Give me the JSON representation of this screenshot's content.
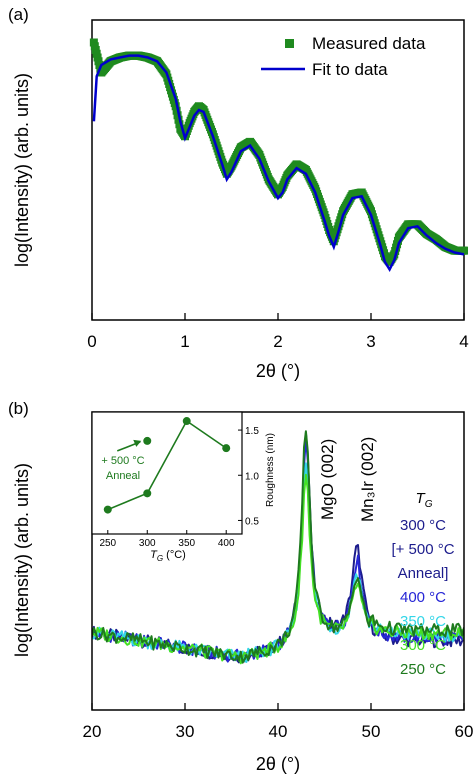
{
  "chart_data": [
    {
      "panel_label": "(a)",
      "type": "line",
      "xlabel": "2θ (°)",
      "ylabel": "log(Intensity) (arb. units)",
      "xlim": [
        0,
        4
      ],
      "xticks": [
        "0",
        "1",
        "2",
        "3",
        "4"
      ],
      "y_ticks_labeled": false,
      "legend": {
        "placement": "top-right",
        "entries": [
          "Measured data",
          "Fit to data"
        ]
      },
      "series": [
        {
          "name": "Measured data",
          "marker": "square",
          "color": "#1f8a1f",
          "x": [
            0.02,
            0.1,
            0.2,
            0.3,
            0.4,
            0.5,
            0.6,
            0.7,
            0.8,
            0.9,
            0.95,
            1.0,
            1.05,
            1.1,
            1.15,
            1.2,
            1.3,
            1.4,
            1.45,
            1.5,
            1.6,
            1.7,
            1.8,
            1.9,
            2.0,
            2.05,
            2.1,
            2.2,
            2.3,
            2.4,
            2.5,
            2.55,
            2.6,
            2.65,
            2.7,
            2.8,
            2.9,
            3.0,
            3.1,
            3.15,
            3.2,
            3.25,
            3.3,
            3.4,
            3.5,
            3.6,
            3.7,
            3.8,
            3.9,
            4.0
          ],
          "y": [
            9.4,
            8.6,
            8.9,
            9.0,
            9.05,
            9.05,
            9.0,
            8.9,
            8.55,
            7.7,
            7.1,
            6.9,
            7.25,
            7.55,
            7.7,
            7.6,
            6.95,
            6.2,
            5.9,
            6.1,
            6.6,
            6.75,
            6.4,
            5.75,
            5.35,
            5.55,
            5.85,
            6.15,
            6.0,
            5.5,
            4.8,
            4.4,
            4.1,
            4.5,
            4.9,
            5.35,
            5.4,
            4.9,
            4.1,
            3.7,
            3.55,
            3.75,
            4.2,
            4.55,
            4.55,
            4.3,
            4.15,
            3.95,
            3.85,
            3.85
          ]
        },
        {
          "name": "Fit to data",
          "color": "#0000cc",
          "x": [
            0.02,
            0.05,
            0.1,
            0.2,
            0.3,
            0.4,
            0.5,
            0.6,
            0.7,
            0.8,
            0.9,
            0.95,
            1.0,
            1.05,
            1.1,
            1.15,
            1.2,
            1.3,
            1.4,
            1.45,
            1.5,
            1.6,
            1.7,
            1.8,
            1.9,
            2.0,
            2.05,
            2.1,
            2.2,
            2.3,
            2.4,
            2.5,
            2.55,
            2.6,
            2.65,
            2.7,
            2.8,
            2.9,
            3.0,
            3.1,
            3.15,
            3.2,
            3.25,
            3.3,
            3.4,
            3.5,
            3.6,
            3.7,
            3.8,
            3.9,
            4.0
          ],
          "y": [
            7.3,
            8.5,
            8.8,
            8.95,
            9.0,
            9.05,
            9.05,
            9.0,
            8.9,
            8.6,
            7.9,
            7.3,
            6.85,
            7.15,
            7.45,
            7.6,
            7.55,
            6.9,
            6.15,
            5.75,
            5.95,
            6.5,
            6.65,
            6.3,
            5.7,
            5.25,
            5.4,
            5.75,
            6.05,
            5.9,
            5.4,
            4.65,
            4.25,
            3.95,
            4.35,
            4.8,
            5.25,
            5.3,
            4.8,
            4.0,
            3.55,
            3.35,
            3.6,
            4.05,
            4.45,
            4.5,
            4.25,
            4.05,
            3.9,
            3.8,
            3.75
          ]
        }
      ]
    },
    {
      "panel_label": "(b)",
      "type": "line",
      "xlabel": "2θ (°)",
      "ylabel": "log(Intensity) (arb. units)",
      "xlim": [
        20,
        60
      ],
      "xticks": [
        "20",
        "30",
        "40",
        "50",
        "60"
      ],
      "y_ticks_labeled": false,
      "annotations": [
        {
          "text": "MgO (002)",
          "x": 43
        },
        {
          "text": "Mn₃Ir (002)",
          "x": 48.5
        }
      ],
      "legend": {
        "placement": "right",
        "title": "T",
        "title_sub": "G",
        "entries": [
          {
            "label": "300 °C",
            "color": "#1c1c8c"
          },
          {
            "label": "[+ 500 °C",
            "color": "#1c1c8c"
          },
          {
            "label": "Anneal]",
            "color": "#1c1c8c"
          },
          {
            "label": "400 °C",
            "color": "#2626d6"
          },
          {
            "label": "350 °C",
            "color": "#33d6e8"
          },
          {
            "label": "300 °C",
            "color": "#44e024"
          },
          {
            "label": "250 °C",
            "color": "#1e7a1e"
          }
        ]
      },
      "series": [
        {
          "name": "300 °C [+ 500 °C Anneal]",
          "color": "#1c1c8c",
          "peak_mgo": 9.6,
          "peak_mn3ir": 5.8,
          "tail": 2.25
        },
        {
          "name": "400 °C",
          "color": "#2626d6",
          "peak_mgo": 9.2,
          "peak_mn3ir": 5.4,
          "tail": 2.35
        },
        {
          "name": "350 °C",
          "color": "#33d6e8",
          "peak_mgo": 8.6,
          "peak_mn3ir": 5.0,
          "tail": 2.45
        },
        {
          "name": "300 °C",
          "color": "#44e024",
          "peak_mgo": 8.2,
          "peak_mn3ir": 4.6,
          "tail": 2.5
        },
        {
          "name": "250 °C",
          "color": "#1e7a1e",
          "peak_mgo": 9.8,
          "peak_mn3ir": 4.9,
          "tail": 2.6
        }
      ],
      "inset": {
        "type": "scatter",
        "xlabel": "T",
        "xlabel_sub": "G",
        "xlabel_unit": " (°C)",
        "ylabel": "Roughness (nm)",
        "xticks": [
          "250",
          "300",
          "350",
          "400"
        ],
        "yticks": [
          "0.5",
          "1.0",
          "1.5"
        ],
        "xlim": [
          230,
          420
        ],
        "ylim": [
          0.35,
          1.7
        ],
        "color": "#1e7a1e",
        "points_x": [
          250,
          300,
          350,
          400
        ],
        "points_y": [
          0.62,
          0.8,
          1.6,
          1.3
        ],
        "anneal_point": {
          "x": 300,
          "y": 1.38
        },
        "annotation_line1": "+ 500 °C",
        "annotation_line2": "Anneal"
      }
    }
  ]
}
